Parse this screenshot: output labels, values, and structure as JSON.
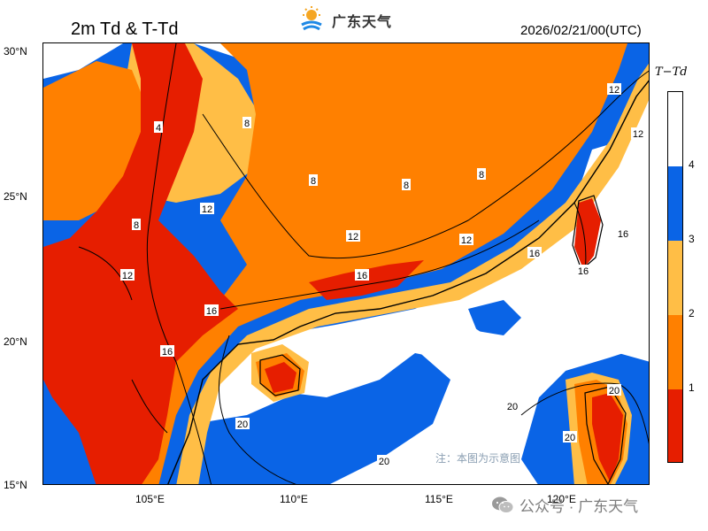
{
  "header": {
    "title": "2m Td & T-Td",
    "brand": "广东天气",
    "datetime": "2026/02/21/00(UTC)"
  },
  "axes": {
    "lat_labels": [
      "30°N",
      "25°N",
      "20°N",
      "15°N"
    ],
    "lon_labels": [
      "105°E",
      "110°E",
      "115°E",
      "120°E"
    ]
  },
  "legend": {
    "title": "T−Td",
    "ticks": [
      "4",
      "3",
      "2",
      "1"
    ],
    "colors": [
      "#ffffff",
      "#0a64e6",
      "#ffbe46",
      "#ff8000",
      "#e61e00"
    ]
  },
  "contour_labels": [
    "4",
    "8",
    "8",
    "8",
    "8",
    "8",
    "12",
    "12",
    "12",
    "12",
    "12",
    "12",
    "16",
    "16",
    "16",
    "16",
    "16",
    "16",
    "20",
    "20",
    "20",
    "20",
    "20"
  ],
  "footnote": "注：本图为示意图",
  "watermark": {
    "text": "公众号 · 广东天气",
    "icon": "wechat-icon"
  }
}
